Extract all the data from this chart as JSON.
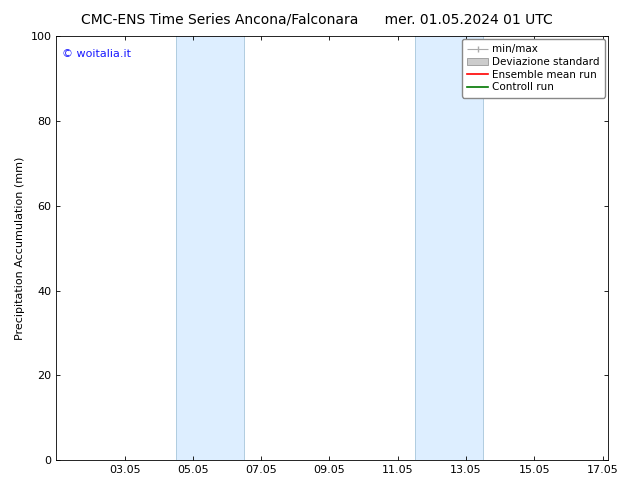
{
  "title": "CMC-ENS Time Series Ancona/Falconara      mer. 01.05.2024 01 UTC",
  "ylabel": "Precipitation Accumulation (mm)",
  "watermark": "© woitalia.it",
  "watermark_color": "#1a1aff",
  "ylim": [
    0,
    100
  ],
  "yticks": [
    0,
    20,
    40,
    60,
    80,
    100
  ],
  "xtick_labels": [
    "03.05",
    "05.05",
    "07.05",
    "09.05",
    "11.05",
    "13.05",
    "15.05",
    "17.05"
  ],
  "xtick_positions": [
    2,
    4,
    6,
    8,
    10,
    12,
    14,
    16
  ],
  "xlim": [
    0,
    16.167
  ],
  "shaded_bands": [
    {
      "x_start": 3.5,
      "x_end": 5.5
    },
    {
      "x_start": 10.5,
      "x_end": 12.5
    }
  ],
  "shaded_color": "#ddeeff",
  "shaded_edge_color": "#b0cce0",
  "legend_labels": [
    "min/max",
    "Deviazione standard",
    "Ensemble mean run",
    "Controll run"
  ],
  "legend_line_colors": [
    "#aaaaaa",
    "#cccccc",
    "#ff0000",
    "#007700"
  ],
  "background_color": "#ffffff",
  "axes_background": "#ffffff",
  "font_size_title": 10,
  "font_size_axis_label": 8,
  "font_size_tick": 8,
  "font_size_legend": 7.5,
  "font_size_watermark": 8,
  "spine_color": "#000000",
  "tick_color": "#000000"
}
